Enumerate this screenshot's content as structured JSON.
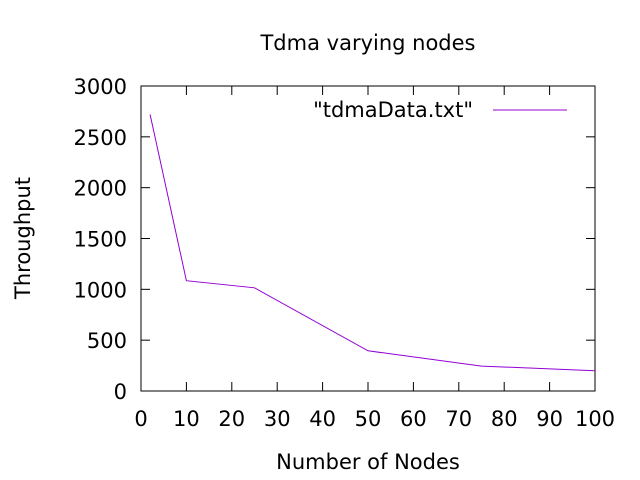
{
  "chart_data": {
    "type": "line",
    "title": "Tdma varying nodes",
    "xlabel": "Number of Nodes",
    "ylabel": "Throughput",
    "xlim": [
      0,
      100
    ],
    "ylim": [
      0,
      3000
    ],
    "x_ticks": [
      0,
      10,
      20,
      30,
      40,
      50,
      60,
      70,
      80,
      90,
      100
    ],
    "y_ticks": [
      0,
      500,
      1000,
      1500,
      2000,
      2500,
      3000
    ],
    "grid": false,
    "legend_position": "top-right",
    "series": [
      {
        "name": "\"tdmaData.txt\"",
        "color": "#9400d3",
        "x": [
          2,
          10,
          25,
          50,
          75,
          100
        ],
        "y": [
          2720,
          1085,
          1015,
          395,
          245,
          200
        ]
      }
    ]
  }
}
